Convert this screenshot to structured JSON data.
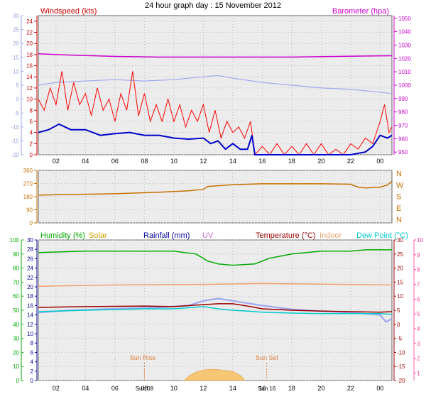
{
  "title": "24 hour graph day : 15 November 2012",
  "colors": {
    "windspeed": "#cc0000",
    "wind_red": "#ff0000",
    "wind_avg": "#0000cc",
    "barometer": "#cc00cc",
    "baro_line": "#cc00cc",
    "wind_gust_blue": "#a0a8f0",
    "winddir": "#c87000",
    "humidity": "#00aa00",
    "solar": "#c8a000",
    "rainfall": "#000099",
    "uv": "#cc66cc",
    "temperature": "#990000",
    "indoor": "#f0a070",
    "dewpoint": "#00cccc",
    "sun_fill": "#f8c060",
    "sunlabel": "#e08040",
    "grid_bg": "#e8e8e8"
  },
  "labels": {
    "windspeed": "Windspeed (kts)",
    "barometer": "Barometer (hpa)",
    "humidity": "Humidity (%)",
    "solar": "Solar",
    "rainfall": "Rainfall (mm)",
    "uv": "UV",
    "temperature": "Temperature (°C)",
    "indoor": "Indoor",
    "dewpoint": "Dew Point (°C)",
    "sunrise": "Sun Rise",
    "sunset": "Sun Set",
    "sunrise_tick": "Sun 08",
    "sunset_tick": "Sun 16"
  },
  "chart_data": [
    {
      "type": "line",
      "name": "wind_barometer",
      "x_ticks": [
        "02",
        "04",
        "06",
        "08",
        "10",
        "12",
        "14",
        "16",
        "18",
        "20",
        "22",
        "00"
      ],
      "x_range_hours": [
        0.8,
        24.8
      ],
      "left_axis": {
        "label": "Windspeed (kts)",
        "ticks": [
          0,
          2,
          4,
          6,
          8,
          10,
          12,
          14,
          16,
          18,
          20,
          22,
          24
        ],
        "range": [
          0,
          25
        ]
      },
      "left_outer_axis": {
        "ticks": [
          -20,
          -15,
          -10,
          -5,
          0,
          5,
          10,
          15,
          20,
          25,
          30
        ],
        "range": [
          -20,
          30
        ]
      },
      "right_axis": {
        "label": "Barometer (hpa)",
        "ticks": [
          950,
          960,
          970,
          980,
          990,
          1000,
          1010,
          1020,
          1030,
          1040,
          1050
        ],
        "range": [
          948,
          1052
        ]
      },
      "series": [
        {
          "name": "Barometer (hpa)",
          "axis": "right",
          "points": [
            [
              0.8,
              1023.5
            ],
            [
              3,
              1022.5
            ],
            [
              6,
              1021.5
            ],
            [
              9,
              1021
            ],
            [
              12,
              1021
            ],
            [
              15,
              1021
            ],
            [
              18,
              1021
            ],
            [
              21,
              1021.5
            ],
            [
              24.8,
              1022
            ]
          ]
        },
        {
          "axis": "left_outer",
          "points": [
            [
              0.8,
              5
            ],
            [
              2,
              6
            ],
            [
              4,
              6.5
            ],
            [
              6,
              7
            ],
            [
              8,
              6.5
            ],
            [
              10,
              7
            ],
            [
              12,
              8
            ],
            [
              13,
              8.5
            ],
            [
              14,
              7.5
            ],
            [
              16,
              6
            ],
            [
              18,
              5
            ],
            [
              20,
              4
            ],
            [
              22,
              3.5
            ],
            [
              24,
              2.5
            ],
            [
              24.8,
              2
            ]
          ]
        },
        {
          "axis": "left",
          "points": [
            [
              0.8,
              4
            ],
            [
              1.5,
              4.5
            ],
            [
              2.2,
              5.5
            ],
            [
              3,
              4.5
            ],
            [
              4,
              4.5
            ],
            [
              5,
              3.5
            ],
            [
              6,
              3.8
            ],
            [
              7,
              4
            ],
            [
              8,
              3.5
            ],
            [
              9,
              3.5
            ],
            [
              10,
              3
            ],
            [
              11,
              2.8
            ],
            [
              12,
              3
            ],
            [
              12.5,
              2
            ],
            [
              13,
              2.5
            ],
            [
              13.5,
              1
            ],
            [
              14,
              2
            ],
            [
              14.5,
              1
            ],
            [
              15,
              1
            ],
            [
              15.3,
              3.5
            ],
            [
              15.5,
              0
            ],
            [
              17,
              0
            ],
            [
              19,
              0
            ],
            [
              21,
              0
            ],
            [
              22,
              0
            ],
            [
              23,
              0.5
            ],
            [
              23.5,
              1.5
            ],
            [
              24,
              3.5
            ],
            [
              24.5,
              3
            ],
            [
              24.8,
              3.5
            ]
          ]
        },
        {
          "axis": "left",
          "points": [
            [
              0.8,
              10
            ],
            [
              1.2,
              8
            ],
            [
              1.6,
              12
            ],
            [
              2,
              9
            ],
            [
              2.4,
              15
            ],
            [
              2.8,
              8
            ],
            [
              3.2,
              13
            ],
            [
              3.6,
              9
            ],
            [
              4,
              11
            ],
            [
              4.4,
              7
            ],
            [
              4.8,
              12
            ],
            [
              5.2,
              8
            ],
            [
              5.6,
              10
            ],
            [
              6,
              6
            ],
            [
              6.4,
              11
            ],
            [
              6.8,
              8
            ],
            [
              7.2,
              15
            ],
            [
              7.6,
              7
            ],
            [
              8,
              11
            ],
            [
              8.4,
              6
            ],
            [
              8.8,
              9
            ],
            [
              9.2,
              6
            ],
            [
              9.6,
              10
            ],
            [
              10,
              6
            ],
            [
              10.4,
              9
            ],
            [
              10.8,
              5
            ],
            [
              11.2,
              8
            ],
            [
              11.6,
              6
            ],
            [
              12,
              9
            ],
            [
              12.4,
              4
            ],
            [
              12.8,
              8
            ],
            [
              13.2,
              3
            ],
            [
              13.6,
              6
            ],
            [
              14,
              4
            ],
            [
              14.4,
              5
            ],
            [
              14.8,
              3
            ],
            [
              15.2,
              6
            ],
            [
              15.5,
              0
            ],
            [
              16,
              1.5
            ],
            [
              16.5,
              0
            ],
            [
              17,
              2
            ],
            [
              17.5,
              0
            ],
            [
              18,
              1.5
            ],
            [
              18.5,
              0
            ],
            [
              19,
              2
            ],
            [
              19.5,
              0
            ],
            [
              20,
              2
            ],
            [
              20.5,
              0
            ],
            [
              21,
              1
            ],
            [
              21.5,
              0
            ],
            [
              22,
              2
            ],
            [
              22.5,
              1
            ],
            [
              23,
              3
            ],
            [
              23.5,
              2
            ],
            [
              24,
              6
            ],
            [
              24.3,
              9
            ],
            [
              24.6,
              4
            ],
            [
              24.8,
              5
            ]
          ]
        }
      ]
    },
    {
      "type": "line",
      "name": "wind_direction",
      "left_axis": {
        "ticks": [
          0,
          90,
          180,
          270,
          360
        ],
        "range": [
          0,
          360
        ]
      },
      "right_axis_labels": [
        "N",
        "W",
        "S",
        "E",
        "N"
      ],
      "series": [
        {
          "axis": "left",
          "points": [
            [
              0.8,
              190
            ],
            [
              3,
              195
            ],
            [
              6,
              200
            ],
            [
              9,
              210
            ],
            [
              11,
              220
            ],
            [
              12,
              230
            ],
            [
              12.3,
              250
            ],
            [
              13,
              255
            ],
            [
              14,
              262
            ],
            [
              16,
              268
            ],
            [
              20,
              268
            ],
            [
              22,
              265
            ],
            [
              22.5,
              245
            ],
            [
              23,
              240
            ],
            [
              24,
              245
            ],
            [
              24.5,
              260
            ],
            [
              24.8,
              285
            ]
          ]
        }
      ]
    },
    {
      "type": "line",
      "name": "humidity_temperature",
      "x_ticks": [
        "02",
        "04",
        "06",
        "08",
        "10",
        "12",
        "14",
        "16",
        "18",
        "20",
        "22",
        "00"
      ],
      "left_axis": {
        "label": "Humidity (%)",
        "ticks": [
          0,
          10,
          20,
          30,
          40,
          50,
          60,
          70,
          80,
          90,
          100
        ],
        "range": [
          0,
          100
        ]
      },
      "left_inner_axis": {
        "ticks": [
          0,
          2,
          4,
          6,
          8,
          10,
          12,
          14,
          16,
          18,
          20,
          22,
          24,
          26,
          28,
          30
        ],
        "range": [
          0,
          30
        ]
      },
      "right_inner_axis": {
        "ticks": [
          -20,
          -15,
          -10,
          -5,
          0,
          5,
          10,
          15,
          20,
          25,
          30
        ],
        "range": [
          -20,
          30
        ]
      },
      "right_axis": {
        "ticks": [
          1,
          2,
          3,
          4,
          5,
          6,
          7,
          8,
          9,
          10
        ],
        "range": [
          0.5,
          10
        ]
      },
      "series": [
        {
          "name": "Humidity (%)",
          "axis": "left",
          "points": [
            [
              0.8,
              91
            ],
            [
              4,
              92
            ],
            [
              8,
              92
            ],
            [
              10,
              92
            ],
            [
              11.5,
              90
            ],
            [
              12.3,
              85
            ],
            [
              13,
              83
            ],
            [
              14,
              82
            ],
            [
              15.5,
              83
            ],
            [
              16.5,
              87
            ],
            [
              18,
              90
            ],
            [
              20,
              92
            ],
            [
              22,
              92
            ],
            [
              23,
              93
            ],
            [
              24.8,
              93
            ]
          ]
        },
        {
          "name": "Indoor",
          "axis": "right_inner",
          "points": [
            [
              0.8,
              13.5
            ],
            [
              6,
              14
            ],
            [
              12,
              14.2
            ],
            [
              16,
              14.5
            ],
            [
              20,
              14.3
            ],
            [
              24.8,
              14
            ]
          ]
        },
        {
          "name": "Temperature (°C)",
          "axis": "right_inner",
          "points": [
            [
              0.8,
              6
            ],
            [
              4,
              6.3
            ],
            [
              8,
              6.5
            ],
            [
              10,
              6.3
            ],
            [
              12,
              7
            ],
            [
              13,
              7.3
            ],
            [
              14,
              7.3
            ],
            [
              15,
              6.5
            ],
            [
              16,
              5.5
            ],
            [
              18,
              5
            ],
            [
              20,
              4.7
            ],
            [
              22,
              4.5
            ],
            [
              24,
              4.3
            ],
            [
              24.8,
              4.5
            ]
          ]
        },
        {
          "name": "Dew Point (°C)",
          "axis": "right_inner",
          "points": [
            [
              0.8,
              4.5
            ],
            [
              4,
              5
            ],
            [
              8,
              5.5
            ],
            [
              10,
              5.5
            ],
            [
              12,
              6.3
            ],
            [
              13,
              5.5
            ],
            [
              14,
              5
            ],
            [
              15,
              4.7
            ],
            [
              16,
              4.3
            ],
            [
              18,
              4
            ],
            [
              20,
              3.8
            ],
            [
              22,
              3.8
            ],
            [
              24,
              3.8
            ],
            [
              24.8,
              3.5
            ]
          ]
        },
        {
          "axis": "left_inner",
          "points": [
            [
              0.8,
              14.5
            ],
            [
              3,
              15
            ],
            [
              6,
              15.3
            ],
            [
              9,
              15.6
            ],
            [
              11,
              16
            ],
            [
              12,
              17
            ],
            [
              13,
              17.5
            ],
            [
              14,
              17
            ],
            [
              15,
              16.5
            ],
            [
              16,
              16
            ],
            [
              18,
              15.2
            ],
            [
              20,
              14.8
            ],
            [
              22,
              14.5
            ],
            [
              24,
              14
            ],
            [
              24.4,
              12.5
            ],
            [
              24.8,
              13.2
            ]
          ]
        },
        {
          "name": "Solar",
          "type": "area",
          "axis": "left",
          "points": [
            [
              10.7,
              0
            ],
            [
              11,
              3
            ],
            [
              11.5,
              6
            ],
            [
              12,
              7.5
            ],
            [
              12.5,
              8
            ],
            [
              13,
              7.8
            ],
            [
              14,
              6.5
            ],
            [
              14.6,
              3
            ],
            [
              14.8,
              0
            ]
          ]
        }
      ],
      "sun_events": {
        "sunrise_hour": 8.0,
        "sunset_hour": 16.3
      }
    }
  ]
}
